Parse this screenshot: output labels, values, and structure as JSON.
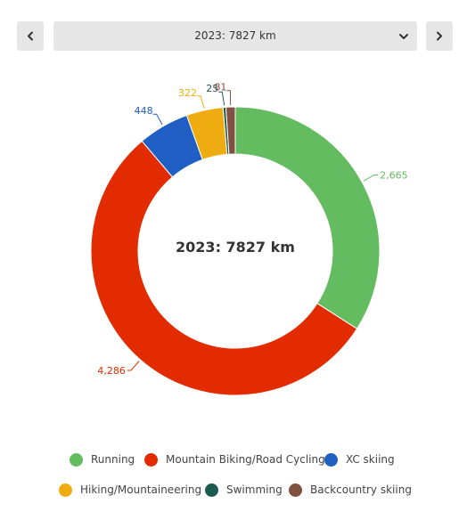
{
  "header": {
    "year_select_value": "2023: 7827 km"
  },
  "chart_data": {
    "type": "pie",
    "style": "donut",
    "center_title": "2023: 7827 km",
    "slices": [
      {
        "name": "Running",
        "value": 2665,
        "label": "2,665",
        "color": "#64bc60"
      },
      {
        "name": "Mountain Biking/Road Cycling",
        "value": 4286,
        "label": "4,286",
        "color": "#e32b00"
      },
      {
        "name": "XC skiing",
        "value": 448,
        "label": "448",
        "color": "#1f5ec2"
      },
      {
        "name": "Hiking/Mountaineering",
        "value": 322,
        "label": "322",
        "color": "#eeac10"
      },
      {
        "name": "Swimming",
        "value": 25,
        "label": "25",
        "color": "#1d5a50"
      },
      {
        "name": "Backcountry skiing",
        "value": 81,
        "label": "81",
        "color": "#805040"
      }
    ],
    "legend_position": "bottom"
  }
}
